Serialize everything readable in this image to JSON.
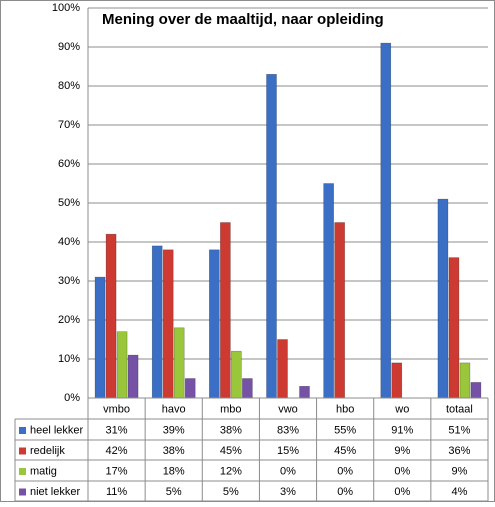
{
  "chart_data": {
    "type": "bar",
    "title": "Mening over de maaltijd, naar opleiding",
    "categories": [
      "vmbo",
      "havo",
      "mbo",
      "vwo",
      "hbo",
      "wo",
      "totaal"
    ],
    "series": [
      {
        "name": "heel lekker",
        "color": "#3b6fc6",
        "values": [
          31,
          39,
          38,
          83,
          55,
          91,
          51
        ],
        "value_labels": [
          "31%",
          "39%",
          "38%",
          "83%",
          "55%",
          "91%",
          "51%"
        ]
      },
      {
        "name": "redelijk",
        "color": "#cc3a32",
        "values": [
          42,
          38,
          45,
          15,
          45,
          9,
          36
        ],
        "value_labels": [
          "42%",
          "38%",
          "45%",
          "15%",
          "45%",
          "9%",
          "36%"
        ]
      },
      {
        "name": "matig",
        "color": "#99c63a",
        "values": [
          17,
          18,
          12,
          0,
          0,
          0,
          9
        ],
        "value_labels": [
          "17%",
          "18%",
          "12%",
          "0%",
          "0%",
          "0%",
          "9%"
        ]
      },
      {
        "name": "niet lekker",
        "color": "#7552a6",
        "values": [
          11,
          5,
          5,
          3,
          0,
          0,
          4
        ],
        "value_labels": [
          "11%",
          "5%",
          "5%",
          "3%",
          "0%",
          "0%",
          "4%"
        ]
      }
    ],
    "ylim": [
      0,
      100
    ],
    "yticks": [
      {
        "value": 0,
        "label": "0%"
      },
      {
        "value": 10,
        "label": "10%"
      },
      {
        "value": 20,
        "label": "20%"
      },
      {
        "value": 30,
        "label": "30%"
      },
      {
        "value": 40,
        "label": "40%"
      },
      {
        "value": 50,
        "label": "50%"
      },
      {
        "value": 60,
        "label": "60%"
      },
      {
        "value": 70,
        "label": "70%"
      },
      {
        "value": 80,
        "label": "80%"
      },
      {
        "value": 90,
        "label": "90%"
      },
      {
        "value": 100,
        "label": "100%"
      }
    ],
    "grid": true
  }
}
